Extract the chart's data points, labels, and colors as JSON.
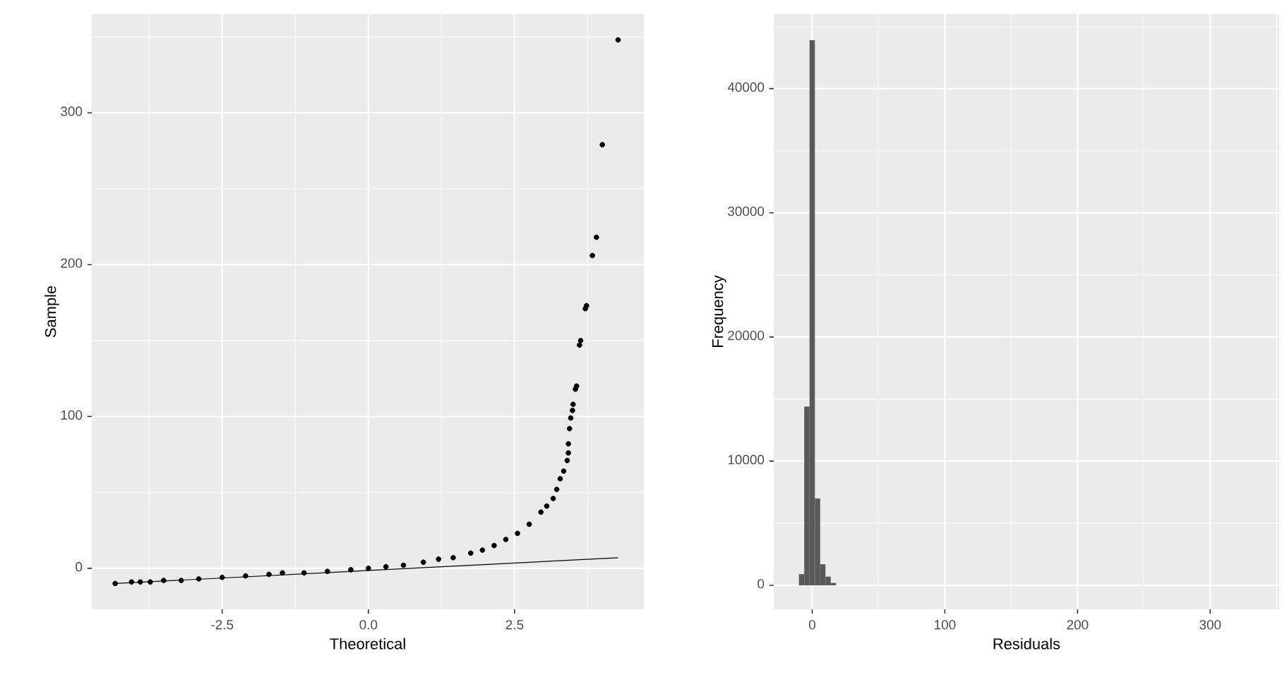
{
  "chart_data": [
    {
      "type": "scatter",
      "xlabel": "Theoretical",
      "ylabel": "Sample",
      "xlim": [
        -4.73,
        4.71
      ],
      "ylim": [
        -27,
        365
      ],
      "xticks": [
        -2.5,
        {
          "value": 0,
          "label": "0.0"
        },
        2.5
      ],
      "yticks": [
        0,
        100,
        200,
        300
      ],
      "grid": true,
      "series": [
        {
          "type": "scatter",
          "marker": "circle",
          "color": "#000000",
          "x": [
            -4.33,
            -4.05,
            -3.9,
            -3.73,
            -3.5,
            -3.2,
            -2.9,
            -2.5,
            -2.1,
            -1.7,
            -1.47,
            -1.1,
            -0.7,
            -0.3,
            0.0,
            0.3,
            0.6,
            0.94,
            1.2,
            1.45,
            1.75,
            1.95,
            2.15,
            2.35,
            2.55,
            2.75,
            2.95,
            3.05,
            3.16,
            3.22,
            3.28,
            3.34,
            3.4,
            3.42,
            3.42,
            3.44,
            3.46,
            3.49,
            3.5,
            3.54,
            3.56,
            3.61,
            3.63,
            3.71,
            3.73,
            3.83,
            3.9,
            4.0,
            4.27
          ],
          "values": [
            -10,
            -9,
            -9,
            -9,
            -8,
            -8,
            -7,
            -6,
            -5,
            -4,
            -3,
            -3,
            -2,
            -1,
            0,
            1,
            2,
            4,
            6,
            7,
            10,
            12,
            15,
            19,
            23,
            29,
            37,
            41,
            46,
            52,
            59,
            64,
            71,
            76,
            82,
            92,
            99,
            104,
            108,
            118,
            120,
            147,
            150,
            171,
            173,
            206,
            218,
            279,
            348
          ]
        },
        {
          "type": "line",
          "marker": "none",
          "color": "#000000",
          "x": [
            -4.33,
            4.27
          ],
          "values": [
            -10,
            7
          ]
        }
      ]
    },
    {
      "type": "histogram",
      "xlabel": "Residuals",
      "ylabel": "Frequency",
      "xlim": [
        -29,
        352
      ],
      "ylim": [
        -1930,
        46000
      ],
      "xticks": [
        0,
        100,
        200,
        300
      ],
      "yticks": [
        0,
        10000,
        20000,
        30000,
        40000
      ],
      "grid": true,
      "color": "#595959",
      "bins": [
        -10,
        -6,
        -2,
        2,
        6,
        10,
        14,
        18
      ],
      "values": [
        900,
        14400,
        43900,
        7000,
        1700,
        700,
        200
      ]
    }
  ]
}
